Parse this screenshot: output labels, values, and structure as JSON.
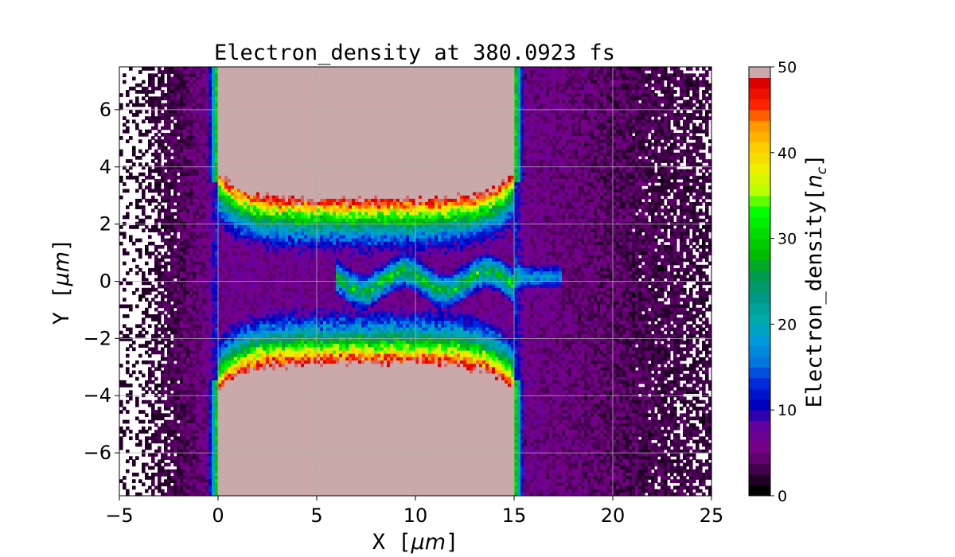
{
  "chart_data": {
    "type": "heatmap",
    "title": "Electron_density at 380.0923 fs",
    "xlabel": "X  [",
    "xlabel_unit": "μm",
    "xlabel_close": "]",
    "ylabel": "Y  [",
    "ylabel_unit": "μm",
    "ylabel_close": "]",
    "xlim": [
      -5,
      25
    ],
    "ylim": [
      -7.5,
      7.5
    ],
    "x_ticks": [
      -5,
      0,
      5,
      10,
      15,
      20,
      25
    ],
    "y_ticks": [
      -6,
      -4,
      -2,
      0,
      2,
      4,
      6
    ],
    "grid": true,
    "colorbar": {
      "label": "Electron_density[",
      "label_unit": "n",
      "label_sub": "c",
      "label_close": "]",
      "range": [
        0,
        50
      ],
      "ticks": [
        0,
        10,
        20,
        30,
        40,
        50
      ],
      "levels": 40,
      "colormap": "nipy_spectral"
    },
    "features": {
      "target_x": [
        0,
        15
      ],
      "channel_upper_y": {
        "x_edges": 3.9,
        "x_center": 2.9
      },
      "channel_lower_y": {
        "x_edges": -3.9,
        "x_center": -2.9
      },
      "saturated_value": 50,
      "central_filament_x": [
        6,
        17.5
      ],
      "central_filament_peak": 28
    },
    "colors": {
      "saturated": "#c9a9a9",
      "low": "#5a0070",
      "background": "#ffffff"
    }
  }
}
